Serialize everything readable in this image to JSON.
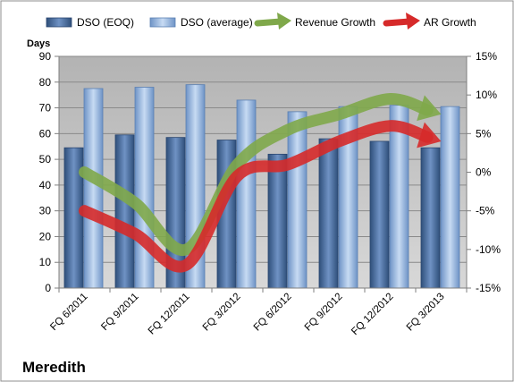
{
  "company": "Meredith",
  "colors": {
    "eoq_bar": "#4a6fa5",
    "avg_bar": "#8fb4e3",
    "revenue_arrow": "#7fa84a",
    "ar_arrow": "#d62a2a",
    "plot_bg": "#c0c0c0",
    "frame": "#7f7f7f"
  },
  "chart_data": {
    "type": "bar",
    "categories": [
      "FQ 6/2011",
      "FQ 9/2011",
      "FQ 12/2011",
      "FQ 3/2012",
      "FQ 6/2012",
      "FQ 9/2012",
      "FQ 12/2012",
      "FQ 3/2013"
    ],
    "ylabel": "Days",
    "ylim": [
      0,
      90
    ],
    "yticks": [
      "0",
      "10",
      "20",
      "30",
      "40",
      "50",
      "60",
      "70",
      "80",
      "90"
    ],
    "y2lim": [
      -15,
      15
    ],
    "y2ticks": [
      "-15%",
      "-10%",
      "-5%",
      "0%",
      "5%",
      "10%",
      "15%"
    ],
    "grid": true,
    "legend_position": "top",
    "series": [
      {
        "name": "DSO (EOQ)",
        "kind": "bar",
        "values": [
          54.5,
          59.5,
          58.5,
          57.5,
          52,
          58,
          57,
          54.5
        ]
      },
      {
        "name": "DSO (average)",
        "kind": "bar",
        "values": [
          77.5,
          78,
          79,
          73,
          68.5,
          70.5,
          71,
          70.5
        ]
      },
      {
        "name": "Revenue Growth",
        "kind": "line-arrow",
        "axis": "right",
        "values": [
          0,
          -4,
          -10,
          1,
          5.5,
          7.5,
          9.5,
          7.5
        ]
      },
      {
        "name": "AR Growth",
        "kind": "line-arrow",
        "axis": "right",
        "values": [
          -5,
          -8,
          -12,
          -0.5,
          1,
          4,
          6,
          4
        ]
      }
    ]
  }
}
